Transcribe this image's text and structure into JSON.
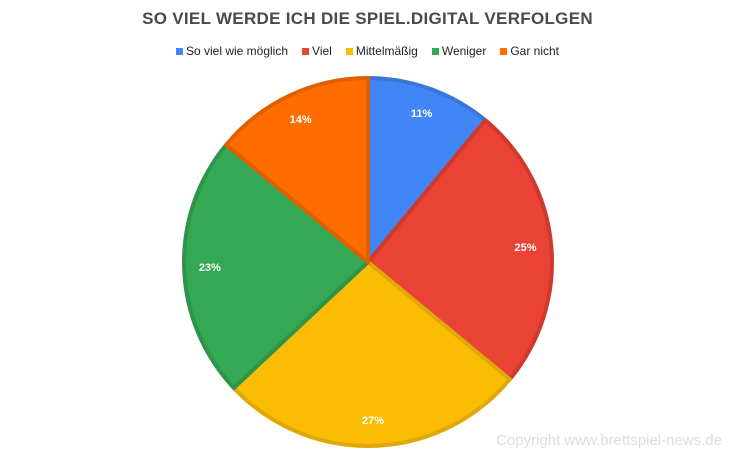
{
  "chart_data": {
    "type": "pie",
    "title": "SO VIEL WERDE ICH DIE SPIEL.DIGITAL VERFOLGEN",
    "legend_position": "top",
    "categories": [
      "So viel wie möglich",
      "Viel",
      "Mittelmäßig",
      "Weniger",
      "Gar nicht"
    ],
    "values": [
      11,
      25,
      27,
      23,
      14
    ],
    "labels": [
      "11%",
      "25%",
      "27%",
      "23%",
      "14%"
    ],
    "colors": [
      "#4285f4",
      "#ea4335",
      "#fbbc04",
      "#34a853",
      "#ff6d01"
    ],
    "stroke_colors": [
      "#3a76d8",
      "#cf3a2e",
      "#e0a804",
      "#2e9449",
      "#e06000"
    ]
  },
  "copyright": "Copyright www.brettspiel-news.de"
}
